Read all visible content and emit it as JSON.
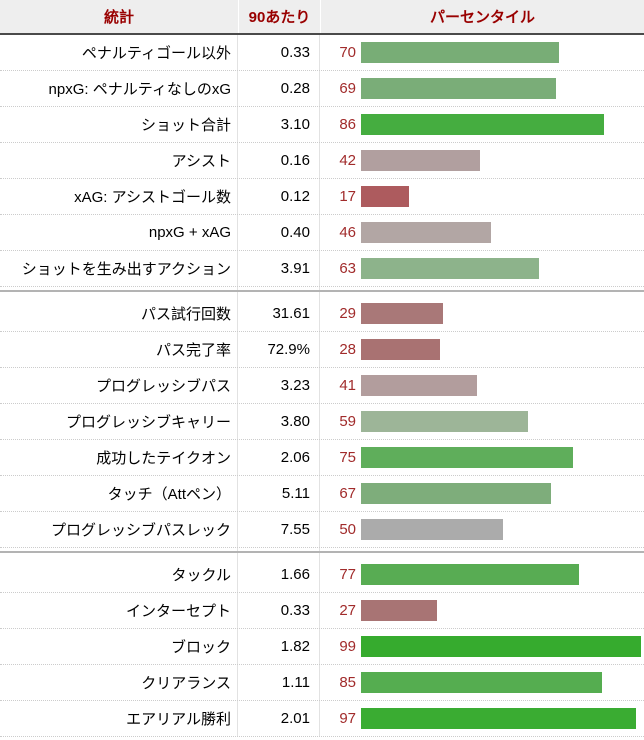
{
  "header": {
    "stat": "統計",
    "per90": "90あたり",
    "percentile": "パーセンタイル"
  },
  "chart_data": {
    "type": "bar",
    "orientation": "horizontal",
    "title": "パーセンタイル",
    "columns": [
      "統計",
      "90あたり",
      "パーセンタイル"
    ],
    "categories": [
      "ペナルティゴール以外",
      "npxG: ペナルティなしのxG",
      "ショット合計",
      "アシスト",
      "xAG: アシストゴール数",
      "npxG + xAG",
      "ショットを生み出すアクション",
      "パス試行回数",
      "パス完了率",
      "プログレッシブパス",
      "プログレッシブキャリー",
      "成功したテイクオン",
      "タッチ（Attペン）",
      "プログレッシブパスレック",
      "タックル",
      "インターセプト",
      "ブロック",
      "クリアランス",
      "エアリアル勝利"
    ],
    "series": [
      {
        "name": "90あたり",
        "values": [
          "0.33",
          "0.28",
          "3.10",
          "0.16",
          "0.12",
          "0.40",
          "3.91",
          "31.61",
          "72.9%",
          "3.23",
          "3.80",
          "2.06",
          "5.11",
          "7.55",
          "1.66",
          "0.33",
          "1.82",
          "1.11",
          "2.01"
        ]
      },
      {
        "name": "パーセンタイル",
        "values": [
          70,
          69,
          86,
          42,
          17,
          46,
          63,
          29,
          28,
          41,
          59,
          75,
          67,
          50,
          77,
          27,
          99,
          85,
          97
        ]
      }
    ],
    "xlim": [
      0,
      100
    ],
    "grid": false,
    "sections": [
      [
        0,
        7
      ],
      [
        7,
        14
      ],
      [
        14,
        19
      ]
    ],
    "bar_colors": [
      "#78ad76",
      "#7aad78",
      "#45ad40",
      "#b19f9f",
      "#ad5b5e",
      "#b2a6a4",
      "#8db38b",
      "#a97878",
      "#a97272",
      "#b29d9d",
      "#9db598",
      "#5fae5b",
      "#7ead7b",
      "#ababab",
      "#58ac53",
      "#a87474",
      "#36ab2e",
      "#55ad50",
      "#3aac32"
    ]
  },
  "colors": {
    "header_text": "#990000",
    "header_bg": "#eeeeee",
    "header_border": "#4a4a4a",
    "percentile_number_text": "#a12b2b",
    "row_text": "#000000",
    "row_separator_dotted": "#cccccc",
    "section_divider": "#b3b3b3",
    "column_border": "#e2e2e2"
  }
}
